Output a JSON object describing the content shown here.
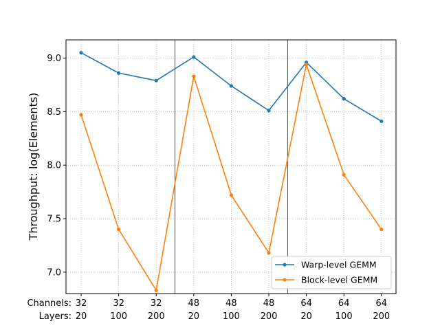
{
  "chart_data": {
    "type": "line",
    "title": "",
    "xlabel": "",
    "ylabel": "Throughput: log(Elements)",
    "ylim": [
      6.8,
      9.17
    ],
    "yticks": [
      "7.0",
      "7.5",
      "8.0",
      "8.5",
      "9.0"
    ],
    "ytick_values": [
      7.0,
      7.5,
      8.0,
      8.5,
      9.0
    ],
    "row_labels": {
      "channels": "Channels:",
      "layers": "Layers:"
    },
    "channels": [
      "32",
      "32",
      "32",
      "48",
      "48",
      "48",
      "64",
      "64",
      "64"
    ],
    "layers": [
      "20",
      "100",
      "200",
      "20",
      "100",
      "200",
      "20",
      "100",
      "200"
    ],
    "group_separators_after": [
      2,
      5
    ],
    "grid": true,
    "legend_position": "lower-right",
    "series": [
      {
        "name": "Warp-level GEMM",
        "color": "#1f77b4",
        "values": [
          9.05,
          8.86,
          8.79,
          9.01,
          8.74,
          8.51,
          8.96,
          8.62,
          8.41
        ]
      },
      {
        "name": "Block-level GEMM",
        "color": "#ff7f0e",
        "values": [
          8.47,
          7.4,
          6.83,
          8.83,
          7.72,
          7.18,
          8.94,
          7.91,
          7.4
        ]
      }
    ]
  }
}
